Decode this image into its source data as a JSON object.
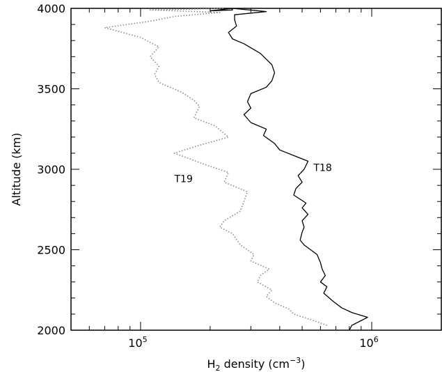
{
  "chart_data": {
    "type": "line",
    "xlabel": {
      "base": "H",
      "sub": "2",
      "mid": " density (cm",
      "sup": "−3",
      "end": ")"
    },
    "ylabel": "Altitude (km)",
    "x_scale": "log",
    "xlim": [
      50000,
      2000000
    ],
    "ylim": [
      2000,
      4000
    ],
    "x_tick_labels": [
      {
        "value": 100000,
        "mant": "10",
        "exp": "5"
      },
      {
        "value": 1000000,
        "mant": "10",
        "exp": "6"
      }
    ],
    "y_ticks": [
      2000,
      2500,
      3000,
      3500,
      4000
    ],
    "y_tick_labels": [
      "2000",
      "2500",
      "3000",
      "3500",
      "4000"
    ],
    "series": [
      {
        "name": "T18",
        "style": "solid",
        "color": "#000000",
        "label_at": [
          560000,
          2990
        ],
        "points": [
          [
            800000,
            2000
          ],
          [
            820000,
            2030
          ],
          [
            960000,
            2080
          ],
          [
            820000,
            2110
          ],
          [
            740000,
            2140
          ],
          [
            680000,
            2180
          ],
          [
            620000,
            2230
          ],
          [
            640000,
            2270
          ],
          [
            600000,
            2300
          ],
          [
            630000,
            2340
          ],
          [
            610000,
            2380
          ],
          [
            600000,
            2420
          ],
          [
            580000,
            2470
          ],
          [
            510000,
            2530
          ],
          [
            490000,
            2560
          ],
          [
            500000,
            2610
          ],
          [
            510000,
            2640
          ],
          [
            500000,
            2680
          ],
          [
            530000,
            2720
          ],
          [
            500000,
            2760
          ],
          [
            520000,
            2790
          ],
          [
            460000,
            2840
          ],
          [
            470000,
            2880
          ],
          [
            500000,
            2920
          ],
          [
            480000,
            2960
          ],
          [
            510000,
            3000
          ],
          [
            530000,
            3050
          ],
          [
            470000,
            3080
          ],
          [
            400000,
            3120
          ],
          [
            380000,
            3160
          ],
          [
            340000,
            3210
          ],
          [
            350000,
            3250
          ],
          [
            300000,
            3290
          ],
          [
            280000,
            3340
          ],
          [
            300000,
            3380
          ],
          [
            290000,
            3420
          ],
          [
            300000,
            3470
          ],
          [
            350000,
            3510
          ],
          [
            370000,
            3550
          ],
          [
            380000,
            3600
          ],
          [
            370000,
            3650
          ],
          [
            330000,
            3720
          ],
          [
            280000,
            3780
          ],
          [
            250000,
            3810
          ],
          [
            240000,
            3850
          ],
          [
            260000,
            3890
          ],
          [
            255000,
            3930
          ],
          [
            255000,
            3960
          ],
          [
            350000,
            3980
          ],
          [
            250000,
            4000
          ],
          [
            200000,
            3985
          ],
          [
            250000,
            3990
          ],
          [
            248000,
            4000
          ]
        ]
      },
      {
        "name": "T19",
        "style": "dotted",
        "color": "#888888",
        "label_at": [
          140000,
          2920
        ],
        "points": [
          [
            640000,
            2030
          ],
          [
            560000,
            2060
          ],
          [
            460000,
            2100
          ],
          [
            440000,
            2130
          ],
          [
            380000,
            2170
          ],
          [
            350000,
            2210
          ],
          [
            370000,
            2250
          ],
          [
            320000,
            2300
          ],
          [
            330000,
            2340
          ],
          [
            360000,
            2380
          ],
          [
            300000,
            2430
          ],
          [
            310000,
            2470
          ],
          [
            270000,
            2530
          ],
          [
            250000,
            2600
          ],
          [
            220000,
            2640
          ],
          [
            230000,
            2680
          ],
          [
            270000,
            2740
          ],
          [
            280000,
            2800
          ],
          [
            290000,
            2860
          ],
          [
            230000,
            2920
          ],
          [
            240000,
            2980
          ],
          [
            190000,
            3030
          ],
          [
            140000,
            3100
          ],
          [
            180000,
            3150
          ],
          [
            240000,
            3200
          ],
          [
            210000,
            3270
          ],
          [
            170000,
            3320
          ],
          [
            180000,
            3390
          ],
          [
            170000,
            3430
          ],
          [
            150000,
            3480
          ],
          [
            120000,
            3540
          ],
          [
            115000,
            3590
          ],
          [
            120000,
            3640
          ],
          [
            110000,
            3700
          ],
          [
            120000,
            3760
          ],
          [
            100000,
            3820
          ],
          [
            70000,
            3880
          ],
          [
            110000,
            3920
          ],
          [
            140000,
            3950
          ],
          [
            220000,
            3975
          ],
          [
            110000,
            3990
          ],
          [
            230000,
            4000
          ]
        ]
      }
    ]
  }
}
